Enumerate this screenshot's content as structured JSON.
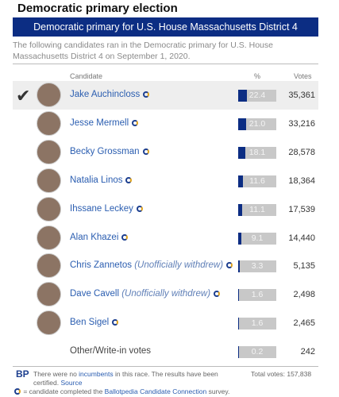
{
  "header": {
    "title": "Democratic primary election",
    "banner": "Democratic primary for U.S. House Massachusetts District 4",
    "description": "The following candidates ran in the Democratic primary for U.S. House Massachusetts District 4 on September 1, 2020."
  },
  "table": {
    "columns": [
      "Candidate",
      "%",
      "Votes"
    ],
    "percent_range": [
      0,
      100
    ],
    "rows": [
      {
        "name": "Jake Auchincloss",
        "winner": true,
        "percent": 22.4,
        "votes": "35,361"
      },
      {
        "name": "Jesse Mermell",
        "percent": 21.0,
        "percent_label": "21.0",
        "votes": "33,216"
      },
      {
        "name": "Becky Grossman",
        "percent": 18.1,
        "votes": "28,578"
      },
      {
        "name": "Natalia Linos",
        "percent": 11.6,
        "votes": "18,364"
      },
      {
        "name": "Ihssane Leckey",
        "percent": 11.1,
        "votes": "17,539"
      },
      {
        "name": "Alan Khazei",
        "percent": 9.1,
        "votes": "14,440"
      },
      {
        "name": "Chris Zannetos",
        "note": "(Unofficially withdrew)",
        "percent": 3.3,
        "votes": "5,135"
      },
      {
        "name": "Dave Cavell",
        "note": "(Unofficially withdrew)",
        "percent": 1.6,
        "votes": "2,498"
      },
      {
        "name": "Ben Sigel",
        "percent": 1.6,
        "votes": "2,465"
      },
      {
        "name": "Other/Write-in votes",
        "other": true,
        "percent": 0.2,
        "votes": "242"
      }
    ]
  },
  "footer": {
    "logo": "BP",
    "text_1": "There were no ",
    "link_1": "incumbents",
    "text_2": " in this race. The results have been certified. ",
    "link_2": "Source",
    "total": "Total votes: 157,838",
    "legend_text": " = candidate completed the ",
    "legend_link": "Ballotpedia Candidate Connection",
    "legend_end": " survey."
  }
}
